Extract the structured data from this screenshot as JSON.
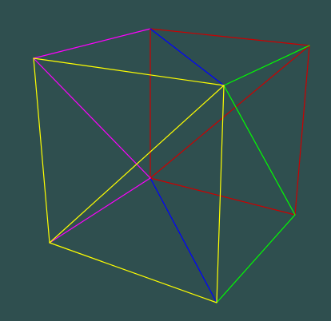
{
  "scene": {
    "background": "#2f4f4f",
    "edge_colors": {
      "yellow": "#ffff00",
      "magenta": "#ff00ff",
      "red": "#cc0000",
      "green": "#00ff00",
      "blue": "#0000ff"
    }
  }
}
